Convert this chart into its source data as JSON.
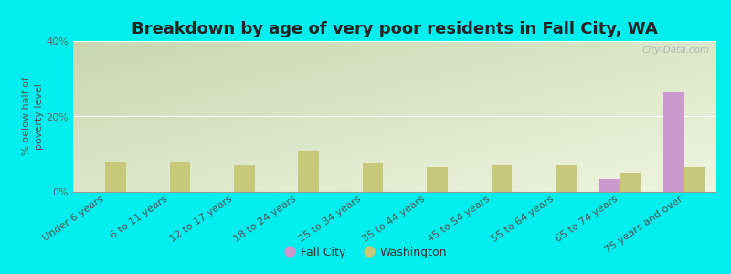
{
  "title": "Breakdown by age of very poor residents in Fall City, WA",
  "ylabel": "% below half of\npoverty level",
  "categories": [
    "Under 6 years",
    "6 to 11 years",
    "12 to 17 years",
    "18 to 24 years",
    "25 to 34 years",
    "35 to 44 years",
    "45 to 54 years",
    "55 to 64 years",
    "65 to 74 years",
    "75 years and over"
  ],
  "fall_city_values": [
    0,
    0,
    0,
    0,
    0,
    0,
    0,
    0,
    3.5,
    26.5
  ],
  "washington_values": [
    8.0,
    8.0,
    7.0,
    11.0,
    7.5,
    6.5,
    7.0,
    7.0,
    5.0,
    6.5
  ],
  "fall_city_color": "#cc99cc",
  "washington_color": "#c8c87a",
  "background_outer": "#00eeee",
  "background_plot_top_left": "#c8d8b0",
  "background_plot_bottom_right": "#f0f4e0",
  "ylim": [
    0,
    40
  ],
  "yticks": [
    0,
    20,
    40
  ],
  "ytick_labels": [
    "0%",
    "20%",
    "40%"
  ],
  "bar_width": 0.32,
  "title_fontsize": 13,
  "axis_label_fontsize": 8,
  "tick_fontsize": 8,
  "legend_labels": [
    "Fall City",
    "Washington"
  ],
  "watermark": "City-Data.com"
}
